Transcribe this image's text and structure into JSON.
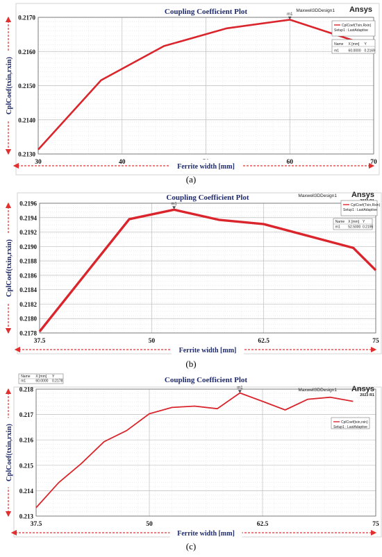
{
  "chart_data": [
    {
      "type": "line",
      "panel_label": "(a)",
      "title": "Coupling Coefficient Plot",
      "software": "Maxwell3DDesign1",
      "brand": "Ansys",
      "version": "",
      "xlabel": "Ferrite width [mm]",
      "ylabel": "CplCoef(txin,rxin)",
      "xlim": [
        30,
        70
      ],
      "ylim": [
        0.213,
        0.217
      ],
      "x_ticks": [
        "30",
        "40",
        "50",
        "60",
        "70"
      ],
      "y_ticks": [
        "0.2130",
        "0.2140",
        "0.2150",
        "0.2160",
        "0.2170"
      ],
      "grid": true,
      "legend_position": "top-right",
      "series": [
        {
          "name": "CplCoef(Txin,Rxin)",
          "setup": "Setup1 : LastAdaptive",
          "color": "#d9252b",
          "x": [
            30,
            37.5,
            45,
            52.5,
            60,
            67.5
          ],
          "values": [
            0.21313,
            0.21516,
            0.21616,
            0.21668,
            0.21693,
            0.21633
          ]
        }
      ],
      "marker": {
        "label": "m1",
        "x": 60,
        "y": 0.2169
      },
      "marker_table": {
        "headers": [
          "Name",
          "X [mm]",
          "Y"
        ],
        "row": [
          "m1",
          "60.0000",
          "0.2169"
        ]
      }
    },
    {
      "type": "line",
      "panel_label": "(b)",
      "title": "Coupling Coefficient Plot",
      "software": "Maxwell3DDesign1",
      "brand": "Ansys",
      "version": "2023 R1",
      "xlabel": "Ferrite width [mm]",
      "ylabel": "CplCoef(txin,rxin)",
      "xlim": [
        37.5,
        75
      ],
      "ylim": [
        0.2178,
        0.2196
      ],
      "x_ticks": [
        "37.5",
        "50",
        "62.5",
        "75"
      ],
      "y_ticks": [
        "0.2178",
        "0.2180",
        "0.2182",
        "0.2184",
        "0.2186",
        "0.2188",
        "0.2190",
        "0.2192",
        "0.2194",
        "0.2196"
      ],
      "grid": true,
      "legend_position": "top-right",
      "series": [
        {
          "name": "CplCoef(Txin,Rxin)",
          "setup": "Setup1 : LastAdaptive",
          "color": "#d9252b",
          "x": [
            37.5,
            47.5,
            52.5,
            57.5,
            62.5,
            72.5,
            75
          ],
          "values": [
            0.21782,
            0.21938,
            0.21951,
            0.21937,
            0.21931,
            0.21898,
            0.21867
          ]
        }
      ],
      "marker": {
        "label": "m1",
        "x": 52.5,
        "y": 0.2195
      },
      "marker_table": {
        "headers": [
          "Name",
          "X [mm]",
          "Y"
        ],
        "row": [
          "m1",
          "52.5000",
          "0.2195"
        ]
      }
    },
    {
      "type": "line",
      "panel_label": "(c)",
      "title": "Coupling Coefficient Plot",
      "software": "Maxwell3DDesign1",
      "brand": "Ansys",
      "version": "2023 R1",
      "xlabel": "Ferrite width [mm]",
      "ylabel": "CplCoef(txin,rxin)",
      "xlim": [
        37.5,
        75
      ],
      "ylim": [
        0.213,
        0.218
      ],
      "x_ticks": [
        "37.5",
        "50",
        "62.5",
        "75"
      ],
      "y_ticks": [
        "0.213",
        "0.214",
        "0.215",
        "0.216",
        "0.217",
        "0.218"
      ],
      "grid": true,
      "legend_position": "right",
      "series": [
        {
          "name": "CplCoef(txin,rxin)",
          "setup": "Setup1 : LastAdaptive",
          "color": "#d9252b",
          "x": [
            37.5,
            40,
            42.5,
            45,
            47.5,
            50,
            52.5,
            55,
            57.5,
            60,
            62.5,
            65,
            67.5,
            70,
            72.5
          ],
          "values": [
            0.21333,
            0.21432,
            0.21507,
            0.21593,
            0.21637,
            0.21703,
            0.21728,
            0.21733,
            0.21723,
            0.21785,
            0.21752,
            0.21718,
            0.2176,
            0.21768,
            0.21752
          ]
        }
      ],
      "marker": {
        "label": "m1",
        "x": 60,
        "y": 0.2178
      },
      "marker_table": {
        "headers": [
          "Name",
          "X [mm]",
          "Y"
        ],
        "row": [
          "m1",
          "60.0000",
          "0.2178"
        ]
      }
    }
  ]
}
